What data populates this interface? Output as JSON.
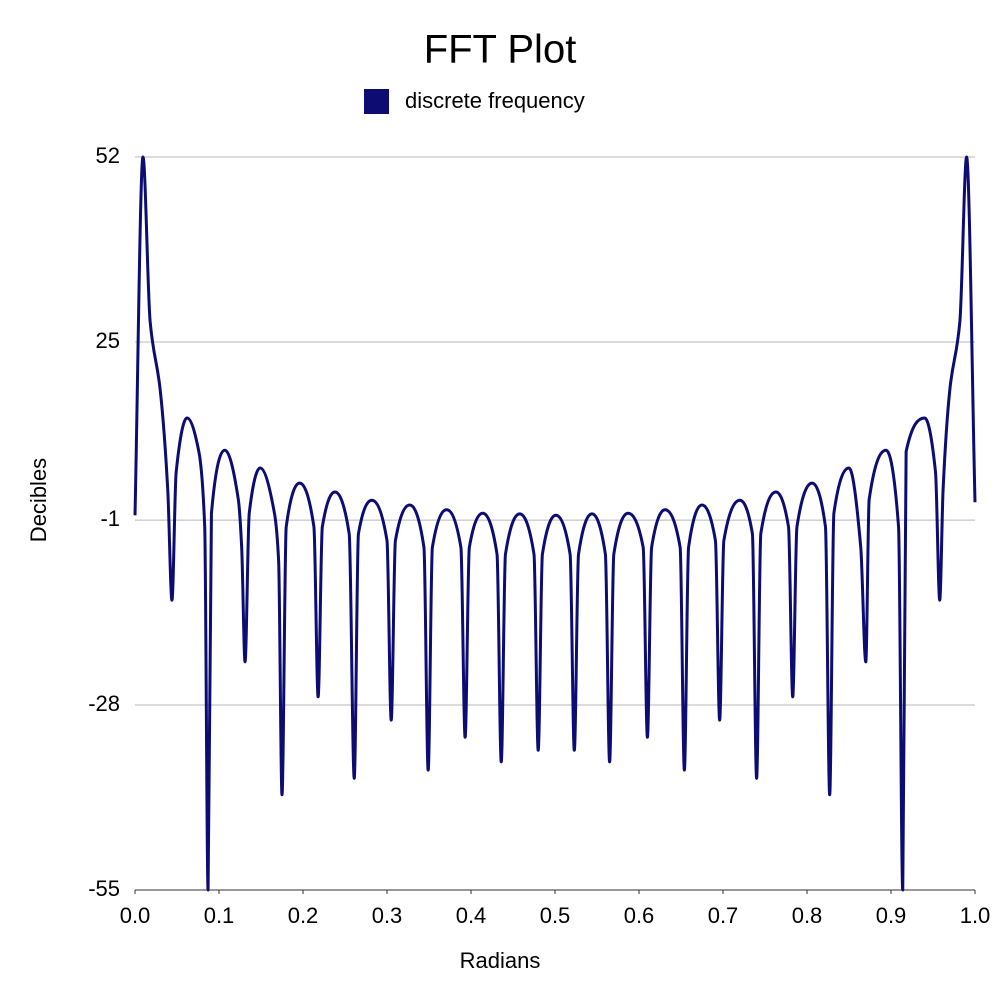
{
  "chart_data": {
    "type": "line",
    "title": "FFT Plot",
    "x_label": "Radians",
    "y_label": "Decibles",
    "legend": "top",
    "grid": true,
    "xlim": [
      0,
      1
    ],
    "xticks": [
      {
        "value": 0,
        "label": "0.0"
      },
      {
        "value": 0.1,
        "label": "0.1"
      },
      {
        "value": 0.2,
        "label": "0.2"
      },
      {
        "value": 0.3,
        "label": "0.3"
      },
      {
        "value": 0.4,
        "label": "0.4"
      },
      {
        "value": 0.5,
        "label": "0.5"
      },
      {
        "value": 0.6,
        "label": "0.6"
      },
      {
        "value": 0.7,
        "label": "0.7"
      },
      {
        "value": 0.8,
        "label": "0.8"
      },
      {
        "value": 0.9,
        "label": "0.9"
      },
      {
        "value": 1,
        "label": "1.0"
      }
    ],
    "ylim": [
      -55,
      52
    ],
    "yticks": [
      -55,
      -28,
      -1,
      25,
      52
    ],
    "x": [
      0,
      0.0095,
      0.018,
      0.03,
      0.039,
      0.044,
      0.049,
      0.062,
      0.076,
      0.083,
      0.087,
      0.091,
      0.107,
      0.123,
      0.127,
      0.131,
      0.136,
      0.149,
      0.166,
      0.171,
      0.175,
      0.18,
      0.196,
      0.213,
      0.218,
      0.223,
      0.238,
      0.255,
      0.261,
      0.266,
      0.282,
      0.3,
      0.305,
      0.31,
      0.327,
      0.344,
      0.349,
      0.354,
      0.371,
      0.388,
      0.393,
      0.398,
      0.414,
      0.431,
      0.436,
      0.441,
      0.458,
      0.475,
      0.48,
      0.485,
      0.501,
      0.518,
      0.523,
      0.528,
      0.544,
      0.56,
      0.565,
      0.57,
      0.587,
      0.605,
      0.61,
      0.615,
      0.631,
      0.649,
      0.654,
      0.659,
      0.675,
      0.691,
      0.696,
      0.701,
      0.72,
      0.735,
      0.74,
      0.745,
      0.763,
      0.778,
      0.783,
      0.788,
      0.806,
      0.822,
      0.827,
      0.832,
      0.85,
      0.864,
      0.87,
      0.874,
      0.894,
      0.909,
      0.914,
      0.918,
      0.94,
      0.953,
      0.958,
      0.962,
      0.97,
      0.982,
      0.99,
      1
    ],
    "series": [
      {
        "name": "discrete frequency",
        "color": "#0c0c73",
        "values": [
          -0.3,
          52,
          28,
          18,
          3.4,
          -12.7,
          6,
          13.9,
          9,
          -2,
          -55,
          0,
          9.2,
          2,
          -5,
          -21.7,
          0,
          6.6,
          0,
          -7,
          -41.1,
          -2,
          4.4,
          -2,
          -26.8,
          -2,
          3.1,
          -3,
          -38.7,
          -3,
          1.9,
          -4,
          -30.2,
          -4,
          1.2,
          -5,
          -37.5,
          -5,
          0.5,
          -5,
          -32.7,
          -5,
          0,
          -6,
          -36.3,
          -6,
          -0.1,
          -6,
          -34.6,
          -6,
          -0.3,
          -6,
          -34.6,
          -6,
          -0.1,
          -6,
          -36.3,
          -6,
          0,
          -5,
          -32.7,
          -5,
          0.5,
          -5,
          -37.5,
          -5,
          1.2,
          -4,
          -30.2,
          -4,
          1.9,
          -3,
          -38.7,
          -3,
          3.1,
          -2,
          -26.8,
          -2,
          4.4,
          -2,
          -41.1,
          0,
          6.6,
          -5,
          -21.7,
          2,
          9.2,
          -2,
          -55,
          9,
          13.9,
          6,
          -12.7,
          3.4,
          18,
          28,
          52,
          1.6
        ]
      }
    ]
  }
}
